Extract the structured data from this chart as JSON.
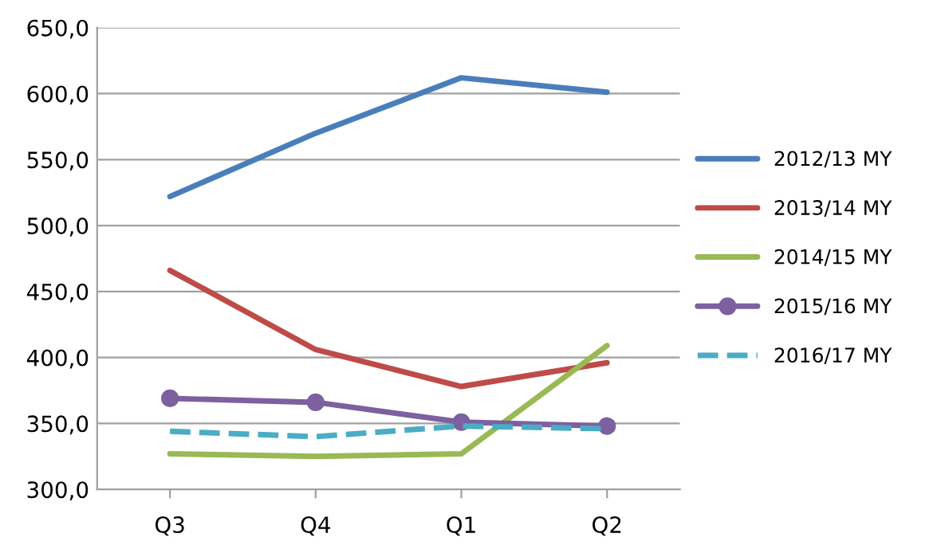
{
  "chart_data": {
    "type": "line",
    "categories": [
      "Q3",
      "Q4",
      "Q1",
      "Q2"
    ],
    "series": [
      {
        "name": "2012/13 MY",
        "color": "#4a7ebb",
        "values": [
          522,
          570,
          612,
          601
        ]
      },
      {
        "name": "2013/14 MY",
        "color": "#be4b48",
        "values": [
          466,
          406,
          378,
          396
        ]
      },
      {
        "name": "2014/15 MY",
        "color": "#98b954",
        "values": [
          327,
          325,
          327,
          409
        ]
      },
      {
        "name": "2015/16 MY",
        "color": "#7d60a0",
        "values": [
          369,
          366,
          351,
          348
        ],
        "marker": "circle"
      },
      {
        "name": "2016/17 MY",
        "color": "#4bacc6",
        "values": [
          344,
          340,
          348,
          346
        ],
        "line_style": "dashed"
      }
    ],
    "ylim": [
      300,
      650
    ],
    "yticks": [
      {
        "value": 300,
        "label": "300,0"
      },
      {
        "value": 350,
        "label": "350,0"
      },
      {
        "value": 400,
        "label": "400,0"
      },
      {
        "value": 450,
        "label": "450,0"
      },
      {
        "value": 500,
        "label": "500,0"
      },
      {
        "value": 550,
        "label": "550,0"
      },
      {
        "value": 600,
        "label": "600,0"
      },
      {
        "value": 650,
        "label": "650,0"
      }
    ],
    "grid": "y",
    "legend": "right"
  }
}
